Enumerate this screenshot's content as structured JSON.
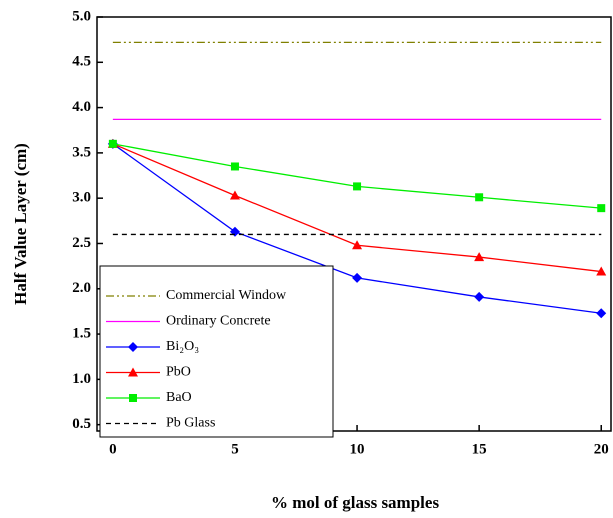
{
  "chart_data": {
    "type": "line",
    "x_label": "% mol of glass samples",
    "y_label": "Half Value Layer (cm)",
    "xlim": [
      -0.65,
      20.4
    ],
    "ylim": [
      0.43,
      5.0
    ],
    "xticks": [
      0,
      5,
      10,
      15,
      20
    ],
    "yticks": [
      0.5,
      1.0,
      1.5,
      2.0,
      2.5,
      3.0,
      3.5,
      4.0,
      4.5,
      5.0
    ],
    "legend": "lower left",
    "series": [
      {
        "name": "Commercial Window",
        "color": "#808000",
        "dash": "dash-dot-dot",
        "marker": null,
        "x": [
          0,
          20
        ],
        "values": [
          4.72,
          4.72
        ]
      },
      {
        "name": "Ordinary Concrete",
        "color": "#ff00ff",
        "dash": "solid",
        "marker": null,
        "x": [
          0,
          20
        ],
        "values": [
          3.87,
          3.87
        ]
      },
      {
        "name": "Bi₂O₃",
        "color": "#0000ff",
        "dash": "solid",
        "marker": "diamond",
        "x": [
          0,
          5,
          10,
          15,
          20
        ],
        "values": [
          3.6,
          2.63,
          2.12,
          1.91,
          1.73
        ]
      },
      {
        "name": "PbO",
        "color": "#ff0000",
        "dash": "solid",
        "marker": "triangle",
        "x": [
          0,
          5,
          10,
          15,
          20
        ],
        "values": [
          3.6,
          3.03,
          2.48,
          2.35,
          2.19
        ]
      },
      {
        "name": "BaO",
        "color": "#00ee00",
        "dash": "solid",
        "marker": "square",
        "x": [
          0,
          5,
          10,
          15,
          20
        ],
        "values": [
          3.6,
          3.35,
          3.13,
          3.01,
          2.89
        ]
      },
      {
        "name": "Pb Glass",
        "color": "#000000",
        "dash": "dashed",
        "marker": null,
        "x": [
          0,
          20
        ],
        "values": [
          2.6,
          2.6
        ]
      }
    ]
  }
}
